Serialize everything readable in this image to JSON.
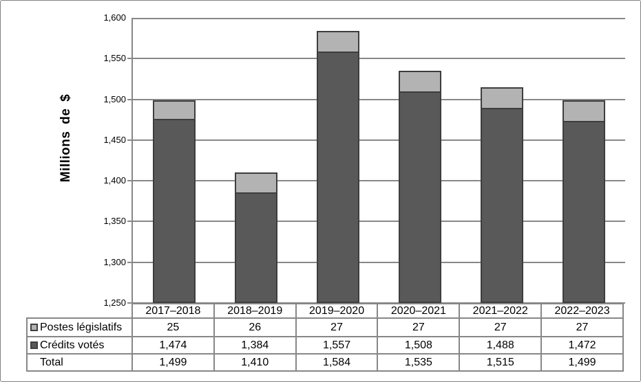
{
  "figure": {
    "background": "#ffffff",
    "border_color": "#808080"
  },
  "chart": {
    "y_axis_title": "Millions de $"
  },
  "chart_data": {
    "type": "bar",
    "subtype": "stacked",
    "title": "",
    "xlabel": "",
    "ylabel": "Millions de $",
    "categories": [
      "2017–2018",
      "2018–2019",
      "2019–2020",
      "2020–2021",
      "2021–2022",
      "2022–2023"
    ],
    "series": [
      {
        "name": "Crédits votés",
        "color": "#595959",
        "values": [
          1474,
          1384,
          1557,
          1508,
          1488,
          1472
        ]
      },
      {
        "name": "Postes législatifs",
        "color": "#b3b3b3",
        "values": [
          25,
          26,
          27,
          27,
          27,
          27
        ]
      }
    ],
    "totals": [
      1499,
      1410,
      1584,
      1535,
      1515,
      1499
    ],
    "ylim": [
      1250,
      1600
    ],
    "ytick_step": 50,
    "ytick_labels": [
      "1,600",
      "1,550",
      "1,500",
      "1,450",
      "1,400",
      "1,350",
      "1,300",
      "1,250"
    ],
    "grid": true,
    "gridline_color": "#878787",
    "bar_border_color": "#3d3d3d",
    "legend_position": "table-rows-left"
  },
  "table": {
    "rows": [
      {
        "label": "Postes législatifs",
        "swatch_color": "#b3b3b3",
        "values": [
          "25",
          "26",
          "27",
          "27",
          "27",
          "27"
        ]
      },
      {
        "label": "Crédits votés",
        "swatch_color": "#595959",
        "values": [
          "1,474",
          "1,384",
          "1,557",
          "1,508",
          "1,488",
          "1,472"
        ]
      },
      {
        "label": "Total",
        "swatch_color": null,
        "values": [
          "1,499",
          "1,410",
          "1,584",
          "1,535",
          "1,515",
          "1,499"
        ]
      }
    ]
  }
}
